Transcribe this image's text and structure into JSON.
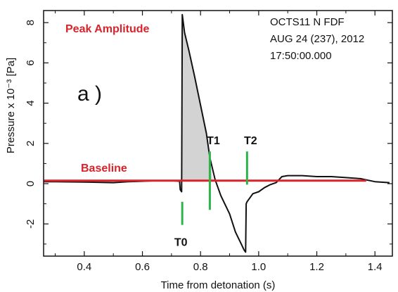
{
  "info": {
    "line1": "OCTS11 N FDF",
    "line2": "AUG 24 (237), 2012",
    "line3": "17:50:00.000"
  },
  "panel_label": "a )",
  "chart_data": {
    "type": "line",
    "xlabel": "Time from detonation (s)",
    "ylabel": "Pressure x 10⁻³ [Pa]",
    "xlim": [
      0.26,
      1.46
    ],
    "ylim": [
      -3.6,
      8.6
    ],
    "x_ticks": [
      0.4,
      0.6,
      0.8,
      1.0,
      1.2,
      1.4
    ],
    "x_tick_labels": [
      "0.4",
      "0.6",
      "0.8",
      "1.0",
      "1.2",
      "1.4"
    ],
    "y_ticks": [
      -2,
      0,
      2,
      4,
      6,
      8
    ],
    "y_tick_labels": [
      "-2",
      "0",
      "2",
      "4",
      "6",
      "8"
    ],
    "grid": false,
    "series": [
      {
        "color": "#111111",
        "points": [
          [
            0.26,
            0.1
          ],
          [
            0.3,
            0.1
          ],
          [
            0.4,
            0.08
          ],
          [
            0.5,
            0.05
          ],
          [
            0.55,
            0.1
          ],
          [
            0.6,
            0.12
          ],
          [
            0.65,
            0.15
          ],
          [
            0.7,
            0.15
          ],
          [
            0.728,
            0.12
          ],
          [
            0.73,
            -0.3
          ],
          [
            0.735,
            -0.4
          ],
          [
            0.737,
            8.4
          ],
          [
            0.745,
            7.5
          ],
          [
            0.76,
            6.6
          ],
          [
            0.78,
            5.3
          ],
          [
            0.8,
            3.9
          ],
          [
            0.82,
            2.5
          ],
          [
            0.832,
            1.3
          ],
          [
            0.85,
            0.2
          ],
          [
            0.87,
            -0.6
          ],
          [
            0.9,
            -1.5
          ],
          [
            0.92,
            -2.4
          ],
          [
            0.94,
            -3.0
          ],
          [
            0.95,
            -3.3
          ],
          [
            0.955,
            -3.4
          ],
          [
            0.957,
            -1.0
          ],
          [
            0.96,
            -0.9
          ],
          [
            0.98,
            -0.5
          ],
          [
            1.0,
            -0.4
          ],
          [
            1.02,
            -0.2
          ],
          [
            1.04,
            -0.05
          ],
          [
            1.06,
            0.05
          ],
          [
            1.08,
            0.35
          ],
          [
            1.1,
            0.4
          ],
          [
            1.15,
            0.4
          ],
          [
            1.2,
            0.35
          ],
          [
            1.25,
            0.35
          ],
          [
            1.3,
            0.3
          ],
          [
            1.35,
            0.25
          ],
          [
            1.4,
            0.1
          ],
          [
            1.45,
            0.05
          ]
        ]
      }
    ],
    "shaded_region": {
      "color": "#d3d3d3",
      "points": [
        [
          0.737,
          0.15
        ],
        [
          0.737,
          8.4
        ],
        [
          0.745,
          7.5
        ],
        [
          0.76,
          6.6
        ],
        [
          0.78,
          5.3
        ],
        [
          0.8,
          3.9
        ],
        [
          0.82,
          2.5
        ],
        [
          0.832,
          1.3
        ],
        [
          0.842,
          0.15
        ]
      ]
    },
    "baseline": {
      "label": "Baseline",
      "y": 0.15,
      "x_range": [
        0.26,
        1.37
      ],
      "color": "#d8232a"
    },
    "peak_amplitude": {
      "label": "Peak Amplitude"
    },
    "markers": [
      {
        "label": "T0",
        "x": 0.737,
        "y_range": [
          -2.05,
          -0.9
        ],
        "color": "#2eb34a"
      },
      {
        "label": "T1",
        "x": 0.832,
        "y_range": [
          -1.3,
          1.6
        ],
        "color": "#2eb34a"
      },
      {
        "label": "T2",
        "x": 0.96,
        "y_range": [
          -0.05,
          1.6
        ],
        "color": "#2eb34a"
      }
    ]
  }
}
